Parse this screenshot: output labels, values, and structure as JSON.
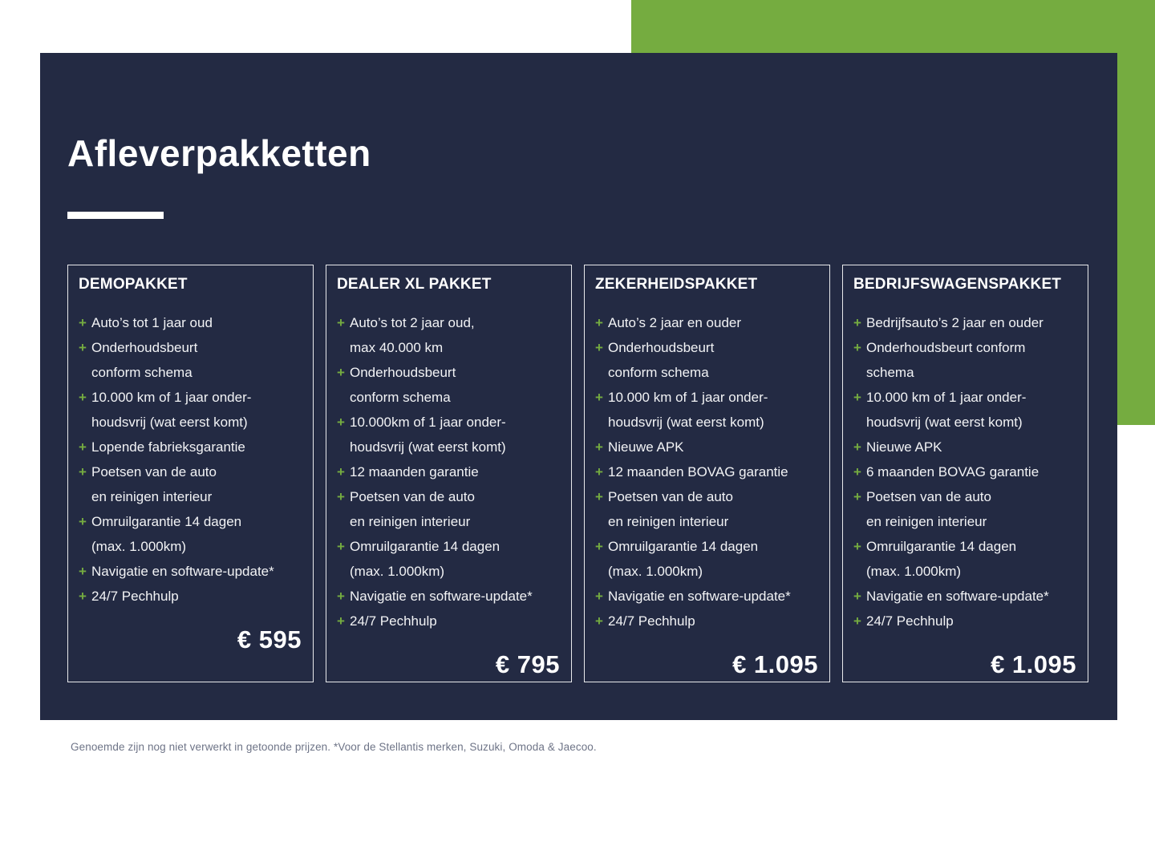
{
  "title": "Afleverpakketten",
  "plus_icon": "+",
  "colors": {
    "navy": "#232A43",
    "green": "#75AC40",
    "body_text": "#F2F3F5",
    "footnote_text": "#6E7487"
  },
  "cards": [
    {
      "title": "DEMOPAKKET",
      "price": "€ 595",
      "features": [
        {
          "lines": [
            "Auto’s tot 1 jaar oud"
          ]
        },
        {
          "lines": [
            "Onderhoudsbeurt",
            "conform schema"
          ]
        },
        {
          "lines": [
            "10.000 km of 1 jaar onder-",
            "houdsvrij (wat eerst komt)"
          ]
        },
        {
          "lines": [
            "Lopende fabrieksgarantie"
          ]
        },
        {
          "lines": [
            "Poetsen van de auto",
            "en reinigen interieur"
          ]
        },
        {
          "lines": [
            "Omruilgarantie 14 dagen",
            "(max. 1.000km)"
          ]
        },
        {
          "lines": [
            "Navigatie en software-update*"
          ]
        },
        {
          "lines": [
            "24/7 Pechhulp"
          ]
        }
      ]
    },
    {
      "title": "DEALER XL PAKKET",
      "price": "€ 795",
      "features": [
        {
          "lines": [
            "Auto’s tot 2 jaar oud,",
            "max 40.000 km"
          ]
        },
        {
          "lines": [
            "Onderhoudsbeurt",
            "conform schema"
          ]
        },
        {
          "lines": [
            "10.000km of 1 jaar onder-",
            "houdsvrij (wat eerst komt)"
          ]
        },
        {
          "lines": [
            "12 maanden garantie"
          ]
        },
        {
          "lines": [
            "Poetsen van de auto",
            "en reinigen interieur"
          ]
        },
        {
          "lines": [
            "Omruilgarantie 14 dagen",
            "(max. 1.000km)"
          ]
        },
        {
          "lines": [
            "Navigatie en software-update*"
          ]
        },
        {
          "lines": [
            "24/7 Pechhulp"
          ]
        }
      ]
    },
    {
      "title": "ZEKERHEIDSPAKKET",
      "price": "€ 1.095",
      "features": [
        {
          "lines": [
            "Auto’s 2 jaar en ouder"
          ]
        },
        {
          "lines": [
            "Onderhoudsbeurt",
            "conform schema"
          ]
        },
        {
          "lines": [
            "10.000 km of 1 jaar onder-",
            "houdsvrij (wat eerst komt)"
          ]
        },
        {
          "lines": [
            "Nieuwe APK"
          ]
        },
        {
          "lines": [
            "12 maanden BOVAG garantie"
          ]
        },
        {
          "lines": [
            "Poetsen van de auto",
            "en reinigen interieur"
          ]
        },
        {
          "lines": [
            "Omruilgarantie 14 dagen",
            "(max. 1.000km)"
          ]
        },
        {
          "lines": [
            "Navigatie en software-update*"
          ]
        },
        {
          "lines": [
            "24/7 Pechhulp"
          ]
        }
      ]
    },
    {
      "title": "BEDRIJFSWAGENSPAKKET",
      "price": "€ 1.095",
      "features": [
        {
          "lines": [
            "Bedrijfsauto’s 2 jaar en ouder"
          ]
        },
        {
          "lines": [
            "Onderhoudsbeurt conform",
            "schema"
          ]
        },
        {
          "lines": [
            "10.000 km of 1 jaar onder-",
            "houdsvrij (wat eerst komt)"
          ]
        },
        {
          "lines": [
            "Nieuwe APK"
          ]
        },
        {
          "lines": [
            "6 maanden BOVAG garantie"
          ]
        },
        {
          "lines": [
            "Poetsen van de auto",
            "en reinigen interieur"
          ]
        },
        {
          "lines": [
            "Omruilgarantie 14 dagen",
            "(max. 1.000km)"
          ]
        },
        {
          "lines": [
            "Navigatie en software-update*"
          ]
        },
        {
          "lines": [
            "24/7 Pechhulp"
          ]
        }
      ]
    }
  ],
  "footnote": "Genoemde zijn nog niet verwerkt in getoonde prijzen. *Voor de Stellantis merken, Suzuki, Omoda & Jaecoo."
}
